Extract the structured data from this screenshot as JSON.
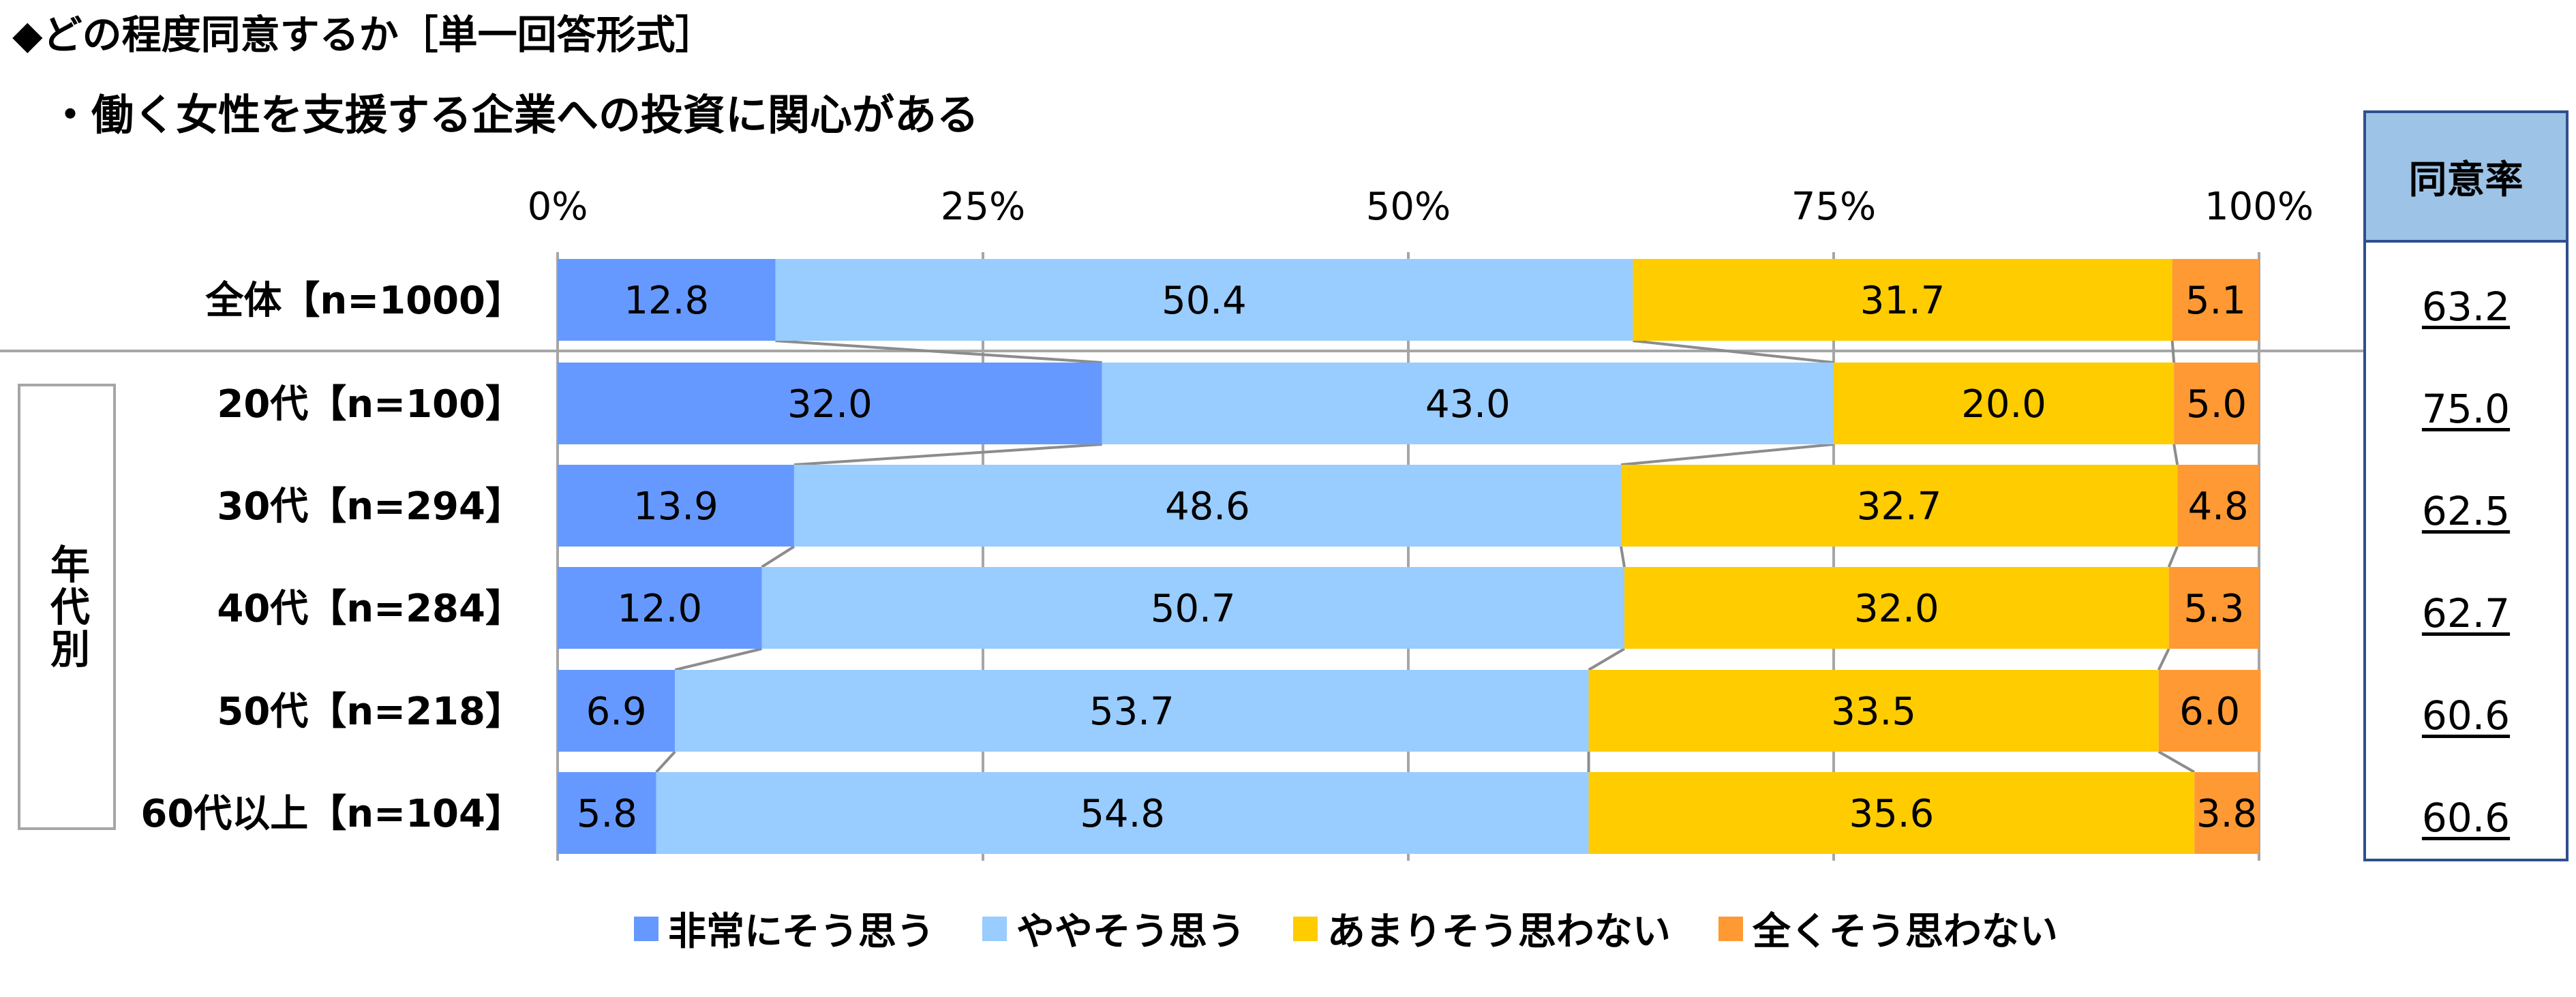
{
  "heading": {
    "question": "◆どの程度同意するか［単一回答形式］",
    "statement": "・働く女性を支援する企業への投資に関心がある"
  },
  "agree_rate": {
    "header": "同意率",
    "values": [
      "63.2",
      "75.0",
      "62.5",
      "62.7",
      "60.6",
      "60.6"
    ]
  },
  "group_label": "年代別",
  "colors": {
    "strongly_agree": "#6699ff",
    "somewhat_agree": "#99ccff",
    "somewhat_disagree": "#ffcc00",
    "strongly_disagree": "#ff9933"
  },
  "chart_data": {
    "type": "bar",
    "orientation": "horizontal-stacked-100",
    "categories": [
      "全体【n=1000】",
      "20代【n=100】",
      "30代【n=294】",
      "40代【n=284】",
      "50代【n=218】",
      "60代以上【n=104】"
    ],
    "series": [
      {
        "name": "非常にそう思う",
        "values": [
          12.8,
          32.0,
          13.9,
          12.0,
          6.9,
          5.8
        ]
      },
      {
        "name": "ややそう思う",
        "values": [
          50.4,
          43.0,
          48.6,
          50.7,
          53.7,
          54.8
        ]
      },
      {
        "name": "あまりそう思わない",
        "values": [
          31.7,
          20.0,
          32.7,
          32.0,
          33.5,
          35.6
        ]
      },
      {
        "name": "全くそう思わない",
        "values": [
          5.1,
          5.0,
          4.8,
          5.3,
          6.0,
          3.8
        ]
      }
    ],
    "x_ticks": [
      "0%",
      "25%",
      "50%",
      "75%",
      "100%"
    ],
    "xlim": [
      0,
      100
    ],
    "grid": true,
    "series_lines": true,
    "legend_position": "bottom"
  }
}
